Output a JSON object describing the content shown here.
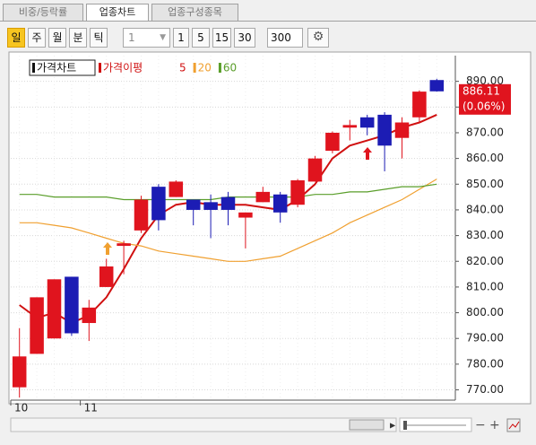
{
  "tabs": [
    "비중/등락률",
    "업종차트",
    "업종구성종목"
  ],
  "toolbar": {
    "periods": [
      "일",
      "주",
      "월",
      "분",
      "틱"
    ],
    "interval": "1",
    "minutes": [
      "1",
      "5",
      "15",
      "30"
    ],
    "count": "300"
  },
  "chart_data": {
    "type": "candlestick",
    "title": "가격차트",
    "ma_title": "가격이평",
    "categories": [
      "10",
      null,
      null,
      null,
      "11",
      null,
      null,
      null,
      null,
      null,
      null,
      null,
      null,
      null,
      null,
      null,
      null,
      null,
      null,
      null,
      null,
      null,
      null,
      null,
      null
    ],
    "open": [
      771,
      784,
      790,
      814,
      796,
      810,
      826,
      832,
      849,
      845,
      844,
      843,
      845,
      837,
      843,
      846,
      842,
      851,
      863,
      872,
      876,
      877,
      868,
      876,
      890.5
    ],
    "high": [
      794,
      806,
      813,
      814,
      805,
      821,
      828,
      845.5,
      850,
      851.5,
      844,
      846,
      847,
      839,
      849,
      847,
      852,
      861,
      870.5,
      875,
      877,
      878,
      876,
      886.5,
      891
    ],
    "low": [
      767,
      784,
      790,
      791,
      789,
      810,
      815,
      831,
      832,
      845,
      834,
      829,
      834,
      825,
      843,
      835,
      841,
      851,
      862,
      867,
      869,
      855,
      860,
      874,
      886
    ],
    "close": [
      783,
      806,
      813,
      792,
      802,
      818,
      827,
      844,
      836,
      851,
      840,
      840,
      840,
      839,
      847,
      839,
      851.5,
      860,
      870,
      873,
      872,
      865,
      874,
      886,
      886.11
    ],
    "up_color": "#e0141e",
    "down_color": "#1c1cb4",
    "series": [
      {
        "name": "5",
        "color": "#d01010",
        "values": [
          803,
          798,
          800,
          796,
          799,
          806,
          817,
          829,
          838,
          842,
          843,
          842,
          842,
          842,
          841,
          840,
          844,
          850,
          860,
          865,
          867,
          869,
          872,
          874,
          877
        ]
      },
      {
        "name": "20",
        "color": "#f0a030",
        "values": [
          835,
          835,
          834,
          833,
          831,
          829,
          827,
          826,
          824,
          823,
          822,
          821,
          820,
          820,
          821,
          822,
          825,
          828,
          831,
          835,
          838,
          841,
          844,
          848,
          852
        ]
      },
      {
        "name": "60",
        "color": "#5a9e2a",
        "values": [
          846,
          846,
          845,
          845,
          845,
          845,
          844,
          844,
          844,
          844,
          844,
          844,
          845,
          845,
          845,
          845,
          845,
          846,
          846,
          847,
          847,
          848,
          849,
          849,
          850
        ]
      }
    ],
    "ylim": [
      766,
      900
    ],
    "yticks": [
      {
        "value": 770,
        "label": "770.00"
      },
      {
        "value": 780,
        "label": "780.00"
      },
      {
        "value": 790,
        "label": "790.00"
      },
      {
        "value": 800,
        "label": "800.00"
      },
      {
        "value": 810,
        "label": "810.00"
      },
      {
        "value": 820,
        "label": "820.00"
      },
      {
        "value": 830,
        "label": "830.00"
      },
      {
        "value": 840,
        "label": "840.00"
      },
      {
        "value": 850,
        "label": "850.00"
      },
      {
        "value": 860,
        "label": "860.00"
      },
      {
        "value": 870,
        "label": "870.00"
      },
      {
        "value": 880,
        "label": "880.00"
      },
      {
        "value": 890,
        "label": "890.00"
      }
    ],
    "last_label": "886.11",
    "change_label": "(0.06%)",
    "grid": true
  }
}
